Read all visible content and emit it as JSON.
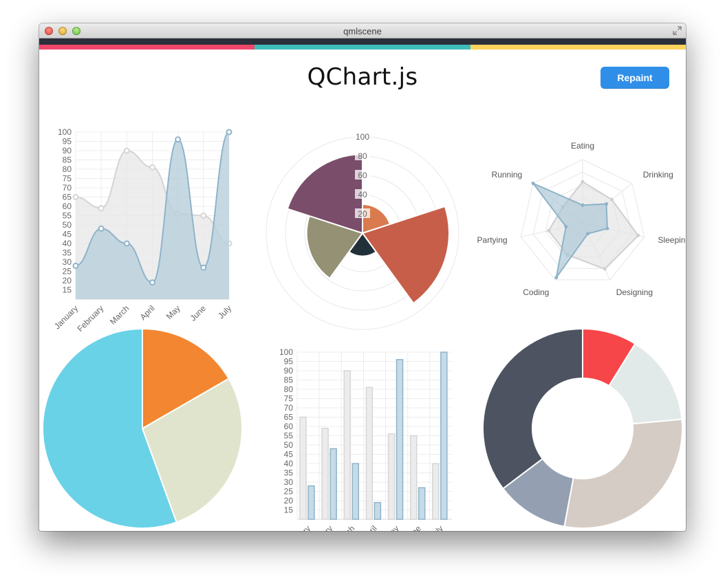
{
  "window": {
    "title": "qmlscene"
  },
  "header": {
    "title": "QChart.js",
    "repaint_label": "Repaint"
  },
  "colors": {
    "strip": [
      "#f0466a",
      "#3ebcb9",
      "#fbd35b"
    ],
    "dark": "#2b2f3a",
    "button": "#2f8fe8"
  },
  "chart_data": [
    {
      "type": "line",
      "categories": [
        "January",
        "February",
        "March",
        "April",
        "May",
        "June",
        "July"
      ],
      "yticks": [
        15,
        20,
        25,
        30,
        35,
        40,
        45,
        50,
        55,
        60,
        65,
        70,
        75,
        80,
        85,
        90,
        95,
        100
      ],
      "ylim": [
        10,
        100
      ],
      "grid": true,
      "series": [
        {
          "values": [
            65,
            59,
            90,
            81,
            56,
            55,
            40
          ],
          "fill": "#e8e8e8",
          "stroke": "#d4d4d4"
        },
        {
          "values": [
            28,
            48,
            40,
            19,
            96,
            27,
            100
          ],
          "fill": "#b8cfdc",
          "stroke": "#8fb3c9"
        }
      ]
    },
    {
      "type": "polar-area",
      "ticks": [
        20,
        40,
        60,
        80,
        100
      ],
      "rmax": 100,
      "segments": [
        {
          "value": 30,
          "color": "#d97b4f"
        },
        {
          "value": 90,
          "color": "#c75e4a"
        },
        {
          "value": 24,
          "color": "#223039"
        },
        {
          "value": 58,
          "color": "#949174"
        },
        {
          "value": 82,
          "color": "#7a4d6b"
        }
      ]
    },
    {
      "type": "radar",
      "labels": [
        "Eating",
        "Drinking",
        "Sleeping",
        "Designing",
        "Coding",
        "Partying",
        "Running"
      ],
      "max": 100,
      "rings": 5,
      "series": [
        {
          "values": [
            65,
            59,
            90,
            81,
            56,
            55,
            40
          ],
          "fill": "#e3e3e3",
          "stroke": "#cfcfcf"
        },
        {
          "values": [
            28,
            48,
            40,
            19,
            96,
            27,
            100
          ],
          "fill": "#a9c4d4",
          "stroke": "#8db3c8"
        }
      ]
    },
    {
      "type": "pie",
      "segments": [
        {
          "value": 30,
          "color": "#f38630"
        },
        {
          "value": 50,
          "color": "#e0e4cc"
        },
        {
          "value": 100,
          "color": "#69d2e7"
        }
      ]
    },
    {
      "type": "bar",
      "categories": [
        "January",
        "February",
        "March",
        "April",
        "May",
        "June",
        "July"
      ],
      "yticks": [
        15,
        20,
        25,
        30,
        35,
        40,
        45,
        50,
        55,
        60,
        65,
        70,
        75,
        80,
        85,
        90,
        95,
        100
      ],
      "ylim": [
        10,
        100
      ],
      "grid": true,
      "series": [
        {
          "values": [
            65,
            59,
            90,
            81,
            56,
            55,
            40
          ],
          "fill": "#ececec",
          "stroke": "#d6d6d6"
        },
        {
          "values": [
            28,
            48,
            40,
            19,
            96,
            27,
            100
          ],
          "fill": "#c6dbe7",
          "stroke": "#8fb3c9"
        }
      ]
    },
    {
      "type": "doughnut",
      "segments": [
        {
          "value": 30,
          "color": "#f7464a"
        },
        {
          "value": 50,
          "color": "#e2eae9"
        },
        {
          "value": 100,
          "color": "#d4ccc5"
        },
        {
          "value": 40,
          "color": "#949fb1"
        },
        {
          "value": 120,
          "color": "#4d5360"
        }
      ]
    }
  ]
}
